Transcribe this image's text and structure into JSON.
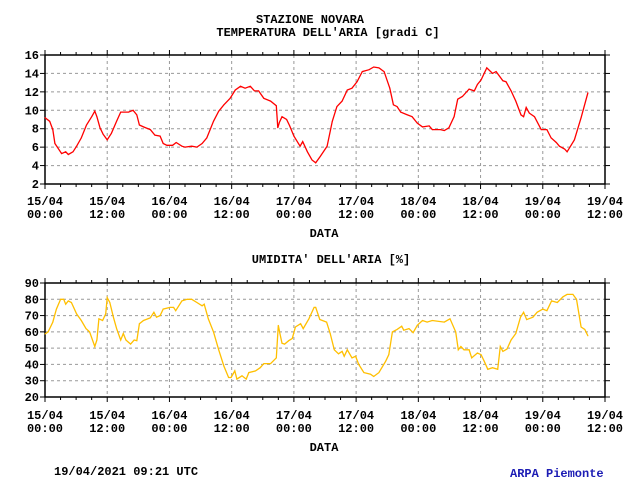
{
  "header": {
    "station": "STAZIONE NOVARA"
  },
  "footer": {
    "timestamp": "19/04/2021 09:21 UTC",
    "brand": "ARPA Piemonte",
    "brand_color": "#1c1cb4"
  },
  "chart_data": [
    {
      "type": "line",
      "title": "TEMPERATURA DELL'ARIA [gradi C]",
      "xlabel": "DATA",
      "ylabel": "",
      "x_units": "hours since 15/04 00:00",
      "xlim": [
        0,
        108
      ],
      "ylim": [
        2,
        16
      ],
      "yticks": [
        2,
        4,
        6,
        8,
        10,
        12,
        14,
        16
      ],
      "xticks": [
        {
          "h": 0,
          "l1": "15/04",
          "l2": "00:00"
        },
        {
          "h": 12,
          "l1": "15/04",
          "l2": "12:00"
        },
        {
          "h": 24,
          "l1": "16/04",
          "l2": "00:00"
        },
        {
          "h": 36,
          "l1": "16/04",
          "l2": "12:00"
        },
        {
          "h": 48,
          "l1": "17/04",
          "l2": "00:00"
        },
        {
          "h": 60,
          "l1": "17/04",
          "l2": "12:00"
        },
        {
          "h": 72,
          "l1": "18/04",
          "l2": "00:00"
        },
        {
          "h": 84,
          "l1": "18/04",
          "l2": "12:00"
        },
        {
          "h": 96,
          "l1": "19/04",
          "l2": "00:00"
        },
        {
          "h": 108,
          "l1": "19/04",
          "l2": "12:00"
        }
      ],
      "grid": true,
      "color": "#ff0000",
      "series": [
        {
          "name": "Temperatura",
          "points": [
            [
              0,
              9.2
            ],
            [
              0.9,
              8.8
            ],
            [
              1.5,
              7.9
            ],
            [
              1.9,
              6.4
            ],
            [
              2.5,
              5.9
            ],
            [
              3.2,
              5.3
            ],
            [
              4,
              5.5
            ],
            [
              4.5,
              5.2
            ],
            [
              5.4,
              5.5
            ],
            [
              6.1,
              6.1
            ],
            [
              7,
              7
            ],
            [
              8,
              8.4
            ],
            [
              9,
              9.3
            ],
            [
              9.6,
              9.9
            ],
            [
              10,
              9.3
            ],
            [
              10.6,
              8.1
            ],
            [
              11.2,
              7.4
            ],
            [
              12,
              6.8
            ],
            [
              12.8,
              7.5
            ],
            [
              13.8,
              8.8
            ],
            [
              14.6,
              9.8
            ],
            [
              16.1,
              9.8
            ],
            [
              17,
              10
            ],
            [
              17.7,
              9.5
            ],
            [
              18.2,
              8.4
            ],
            [
              19,
              8.2
            ],
            [
              20.3,
              7.9
            ],
            [
              21.2,
              7.3
            ],
            [
              22.2,
              7.2
            ],
            [
              22.8,
              6.4
            ],
            [
              23.5,
              6.2
            ],
            [
              24.6,
              6.2
            ],
            [
              25.3,
              6.5
            ],
            [
              26.4,
              6.1
            ],
            [
              27,
              6
            ],
            [
              28.3,
              6.1
            ],
            [
              29.3,
              6
            ],
            [
              30.3,
              6.4
            ],
            [
              31.2,
              7
            ],
            [
              32.5,
              8.8
            ],
            [
              33.5,
              9.9
            ],
            [
              34.5,
              10.6
            ],
            [
              35.7,
              11.3
            ],
            [
              36.7,
              12.2
            ],
            [
              37.7,
              12.6
            ],
            [
              38.6,
              12.4
            ],
            [
              39.6,
              12.6
            ],
            [
              40.4,
              12.1
            ],
            [
              41.2,
              12.1
            ],
            [
              42.2,
              11.3
            ],
            [
              43.5,
              11
            ],
            [
              44.6,
              10.5
            ],
            [
              44.9,
              8.1
            ],
            [
              45.2,
              8.7
            ],
            [
              45.7,
              9.3
            ],
            [
              46.6,
              9
            ],
            [
              47.2,
              8.3
            ],
            [
              48,
              7.2
            ],
            [
              49.2,
              6.1
            ],
            [
              49.7,
              6.6
            ],
            [
              50.6,
              5.5
            ],
            [
              51.5,
              4.6
            ],
            [
              52.2,
              4.3
            ],
            [
              53.1,
              5
            ],
            [
              54.4,
              6.1
            ],
            [
              55.4,
              8.8
            ],
            [
              56.3,
              10.4
            ],
            [
              57.3,
              11
            ],
            [
              58.3,
              12.2
            ],
            [
              59.2,
              12.4
            ],
            [
              60.2,
              13.1
            ],
            [
              61.2,
              14.2
            ],
            [
              62.5,
              14.4
            ],
            [
              63.4,
              14.7
            ],
            [
              64.4,
              14.6
            ],
            [
              65.4,
              14.2
            ],
            [
              66.5,
              12.4
            ],
            [
              67.2,
              10.6
            ],
            [
              67.9,
              10.4
            ],
            [
              68.6,
              9.8
            ],
            [
              69.9,
              9.5
            ],
            [
              70.8,
              9.3
            ],
            [
              71.8,
              8.6
            ],
            [
              72.8,
              8.2
            ],
            [
              74.1,
              8.3
            ],
            [
              74.7,
              7.9
            ],
            [
              76.3,
              7.9
            ],
            [
              77,
              7.8
            ],
            [
              77.9,
              8.1
            ],
            [
              78.9,
              9.3
            ],
            [
              79.6,
              11.2
            ],
            [
              80.5,
              11.5
            ],
            [
              81.8,
              12.3
            ],
            [
              82.8,
              12.1
            ],
            [
              83.4,
              12.8
            ],
            [
              84.1,
              13.3
            ],
            [
              85.2,
              14.6
            ],
            [
              86.3,
              14
            ],
            [
              87,
              14.2
            ],
            [
              88.3,
              13.2
            ],
            [
              88.9,
              13.1
            ],
            [
              89.9,
              12.1
            ],
            [
              90.8,
              11
            ],
            [
              91.8,
              9.5
            ],
            [
              92.3,
              9.3
            ],
            [
              92.8,
              10.3
            ],
            [
              93.4,
              9.7
            ],
            [
              94.4,
              9.3
            ],
            [
              95.7,
              7.9
            ],
            [
              96.8,
              7.9
            ],
            [
              97.6,
              7
            ],
            [
              98.6,
              6.5
            ],
            [
              99.2,
              6.1
            ],
            [
              100.2,
              5.8
            ],
            [
              100.7,
              5.5
            ],
            [
              102.1,
              6.8
            ],
            [
              103.4,
              9.2
            ],
            [
              104.7,
              11.9
            ]
          ]
        }
      ]
    },
    {
      "type": "line",
      "title": "UMIDITA' DELL'ARIA [%]",
      "xlabel": "DATA",
      "ylabel": "",
      "x_units": "hours since 15/04 00:00",
      "xlim": [
        0,
        108
      ],
      "ylim": [
        20,
        90
      ],
      "yticks": [
        20,
        30,
        40,
        50,
        60,
        70,
        80,
        90
      ],
      "xticks": [
        {
          "h": 0,
          "l1": "15/04",
          "l2": "00:00"
        },
        {
          "h": 12,
          "l1": "15/04",
          "l2": "12:00"
        },
        {
          "h": 24,
          "l1": "16/04",
          "l2": "00:00"
        },
        {
          "h": 36,
          "l1": "16/04",
          "l2": "12:00"
        },
        {
          "h": 48,
          "l1": "17/04",
          "l2": "00:00"
        },
        {
          "h": 60,
          "l1": "17/04",
          "l2": "12:00"
        },
        {
          "h": 72,
          "l1": "18/04",
          "l2": "00:00"
        },
        {
          "h": 84,
          "l1": "18/04",
          "l2": "12:00"
        },
        {
          "h": 96,
          "l1": "19/04",
          "l2": "00:00"
        },
        {
          "h": 108,
          "l1": "19/04",
          "l2": "12:00"
        }
      ],
      "grid": true,
      "color": "#ffbf00",
      "series": [
        {
          "name": "Umidita",
          "points": [
            [
              0,
              58.7
            ],
            [
              0.6,
              60
            ],
            [
              1.5,
              66
            ],
            [
              2.2,
              74
            ],
            [
              3,
              80
            ],
            [
              3.6,
              80
            ],
            [
              4,
              77
            ],
            [
              4.5,
              79
            ],
            [
              5.1,
              78
            ],
            [
              6.1,
              71
            ],
            [
              7,
              67
            ],
            [
              7.9,
              62
            ],
            [
              8.6,
              60
            ],
            [
              9.6,
              51
            ],
            [
              10,
              55
            ],
            [
              10.4,
              68
            ],
            [
              11.1,
              67
            ],
            [
              11.7,
              71
            ],
            [
              12,
              81
            ],
            [
              12.5,
              78
            ],
            [
              13.2,
              69
            ],
            [
              13.8,
              62
            ],
            [
              14.6,
              55
            ],
            [
              15.1,
              59
            ],
            [
              15.6,
              55
            ],
            [
              16.5,
              52.5
            ],
            [
              17.2,
              55
            ],
            [
              17.7,
              54.6
            ],
            [
              18.2,
              65
            ],
            [
              19,
              67
            ],
            [
              20.3,
              68.6
            ],
            [
              21,
              72
            ],
            [
              21.5,
              69
            ],
            [
              22.2,
              70
            ],
            [
              22.8,
              74
            ],
            [
              24.1,
              75
            ],
            [
              24.8,
              75
            ],
            [
              25.2,
              73
            ],
            [
              26.4,
              79
            ],
            [
              27.4,
              80
            ],
            [
              28.3,
              80
            ],
            [
              29.3,
              78
            ],
            [
              30.3,
              76
            ],
            [
              30.7,
              77
            ],
            [
              31.5,
              68
            ],
            [
              32.5,
              60
            ],
            [
              33.5,
              49
            ],
            [
              34.5,
              39
            ],
            [
              35.4,
              32
            ],
            [
              35.9,
              32
            ],
            [
              36.6,
              36
            ],
            [
              37,
              31
            ],
            [
              38,
              33
            ],
            [
              38.8,
              31
            ],
            [
              39.3,
              35
            ],
            [
              40.6,
              36
            ],
            [
              41.5,
              38
            ],
            [
              42.2,
              40.5
            ],
            [
              43.5,
              40.5
            ],
            [
              44.6,
              44
            ],
            [
              45,
              64
            ],
            [
              45.3,
              59
            ],
            [
              45.7,
              53
            ],
            [
              46.2,
              52.5
            ],
            [
              47,
              54.6
            ],
            [
              47.7,
              56
            ],
            [
              48.3,
              63
            ],
            [
              49.3,
              65
            ],
            [
              49.8,
              62
            ],
            [
              50.9,
              68
            ],
            [
              51.9,
              75
            ],
            [
              52.2,
              75
            ],
            [
              53,
              67.6
            ],
            [
              54.3,
              66
            ],
            [
              55,
              59
            ],
            [
              55.8,
              49
            ],
            [
              56.6,
              46.5
            ],
            [
              57.3,
              48
            ],
            [
              57.7,
              45
            ],
            [
              58.3,
              49
            ],
            [
              59.2,
              44
            ],
            [
              59.9,
              45
            ],
            [
              60.5,
              40
            ],
            [
              61.5,
              35
            ],
            [
              62.8,
              34
            ],
            [
              63.4,
              32.6
            ],
            [
              64.4,
              35
            ],
            [
              65.7,
              42
            ],
            [
              66.3,
              46
            ],
            [
              67,
              60
            ],
            [
              67.9,
              61.5
            ],
            [
              68.8,
              63.5
            ],
            [
              69.2,
              61
            ],
            [
              70.2,
              62
            ],
            [
              71,
              59.5
            ],
            [
              71.8,
              64
            ],
            [
              72.8,
              67
            ],
            [
              73.7,
              66
            ],
            [
              74.7,
              67
            ],
            [
              77,
              66
            ],
            [
              78.1,
              68
            ],
            [
              79.2,
              60
            ],
            [
              79.7,
              49
            ],
            [
              80.2,
              51
            ],
            [
              80.8,
              49
            ],
            [
              81.8,
              49
            ],
            [
              82.3,
              44
            ],
            [
              83.4,
              47
            ],
            [
              84.1,
              46
            ],
            [
              84.7,
              42
            ],
            [
              85.4,
              37
            ],
            [
              86.3,
              38
            ],
            [
              87.3,
              37
            ],
            [
              87.8,
              51
            ],
            [
              88.3,
              48
            ],
            [
              89.1,
              49.5
            ],
            [
              89.9,
              55
            ],
            [
              90.8,
              59
            ],
            [
              91.7,
              69
            ],
            [
              92.3,
              72
            ],
            [
              92.9,
              67.5
            ],
            [
              94.1,
              69
            ],
            [
              94.9,
              72
            ],
            [
              96,
              74
            ],
            [
              96.8,
              73
            ],
            [
              97.7,
              79
            ],
            [
              98.8,
              78
            ],
            [
              99.9,
              81.5
            ],
            [
              100.7,
              83
            ],
            [
              101.8,
              83
            ],
            [
              102.5,
              80
            ],
            [
              103.4,
              63
            ],
            [
              104.1,
              61.5
            ],
            [
              104.7,
              57.5
            ]
          ]
        }
      ]
    }
  ]
}
